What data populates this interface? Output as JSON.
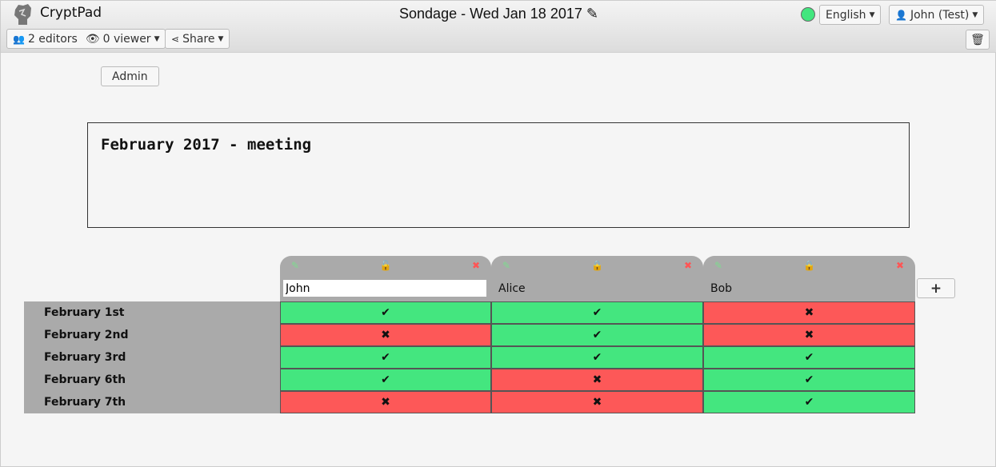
{
  "app": {
    "brand": "CryptPad",
    "title": "Sondage - Wed Jan 18 2017"
  },
  "toolbar": {
    "editors": "2 editors",
    "viewers": "0 viewer",
    "share": "Share",
    "language": "English",
    "user": "John (Test)",
    "status_color": "#42e67e"
  },
  "admin_label": "Admin",
  "description": "February 2017 - meeting",
  "columns": [
    {
      "name": "John",
      "editing": true,
      "lock": "unlock-icon"
    },
    {
      "name": "Alice",
      "editing": false,
      "lock": "lock-icon"
    },
    {
      "name": "Bob",
      "editing": false,
      "lock": "lock-icon"
    }
  ],
  "rows": [
    {
      "label": "February 1st",
      "votes": [
        true,
        true,
        false
      ]
    },
    {
      "label": "February 2nd",
      "votes": [
        false,
        true,
        false
      ]
    },
    {
      "label": "February 3rd",
      "votes": [
        true,
        true,
        true
      ]
    },
    {
      "label": "February 6th",
      "votes": [
        true,
        false,
        true
      ]
    },
    {
      "label": "February 7th",
      "votes": [
        false,
        false,
        true
      ]
    }
  ],
  "colors": {
    "yes": "#44e67f",
    "no": "#fd5858"
  },
  "symbols": {
    "yes": "✔",
    "no": "✖",
    "add": "+"
  }
}
